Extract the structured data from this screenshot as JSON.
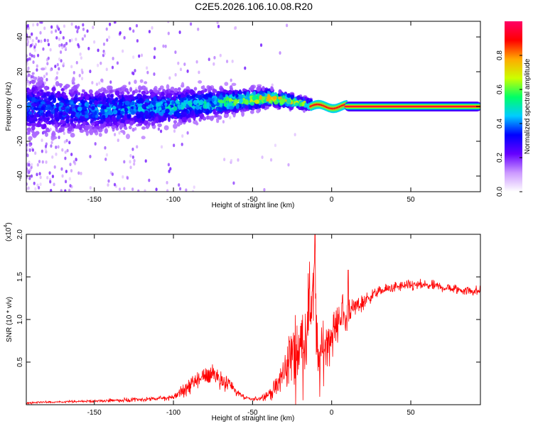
{
  "title": "C2E5.2026.106.10.08.R20",
  "chart_data": [
    {
      "type": "heatmap",
      "xlabel": "Height of straight line (km)",
      "ylabel": "Frequency (Hz)",
      "xlim": [
        -193,
        94
      ],
      "ylim": [
        -49,
        49
      ],
      "xticks": [
        -150,
        -100,
        -50,
        0,
        50
      ],
      "xtick_labels": [
        "-150",
        "-100",
        "-50",
        "0",
        "50"
      ],
      "yticks": [
        -40,
        -20,
        0,
        20,
        40
      ],
      "ytick_labels": [
        "-40",
        "-20",
        "0",
        "20",
        "40"
      ],
      "colorbar": {
        "label": "Normalized spectral amplitude",
        "range": [
          0,
          1
        ],
        "ticks": [
          0,
          0.2,
          0.4,
          0.6,
          0.8
        ],
        "tick_labels": [
          "0.0",
          "0.2",
          "0.4",
          "0.6",
          "0.8"
        ],
        "colors": [
          "#ffffff",
          "#cc99ff",
          "#6600ff",
          "#0000ff",
          "#00ccff",
          "#00ff66",
          "#ccff00",
          "#ffaa00",
          "#ff0000",
          "#ff0066"
        ]
      },
      "ridge": [
        {
          "x": -193,
          "y": 0,
          "spread": 8,
          "level": 0.25
        },
        {
          "x": -150,
          "y": -2,
          "spread": 6,
          "level": 0.3
        },
        {
          "x": -100,
          "y": 0,
          "spread": 5,
          "level": 0.35
        },
        {
          "x": -75,
          "y": 2,
          "spread": 4,
          "level": 0.4
        },
        {
          "x": -50,
          "y": 4,
          "spread": 3,
          "level": 0.55
        },
        {
          "x": -40,
          "y": 5,
          "spread": 2.5,
          "level": 0.7
        },
        {
          "x": -25,
          "y": 3,
          "spread": 2,
          "level": 0.6
        },
        {
          "x": -13,
          "y": 1,
          "spread": 1.5,
          "level": 0.5
        },
        {
          "x": -13,
          "y": 0,
          "spread": 1.2,
          "level": 0.85
        },
        {
          "x": 94,
          "y": 0,
          "spread": 1.2,
          "level": 0.95
        }
      ]
    },
    {
      "type": "line",
      "xlabel": "Height of straight line (km)",
      "ylabel": "SNR (10 * v/v)",
      "multiplier_label": "(x10",
      "multiplier_exp": "4",
      "multiplier_close": ")",
      "xlim": [
        -193,
        94
      ],
      "ylim": [
        0,
        2.0
      ],
      "xticks": [
        -150,
        -100,
        -50,
        0,
        50
      ],
      "xtick_labels": [
        "-150",
        "-100",
        "-50",
        "0",
        "50"
      ],
      "yticks": [
        0.5,
        1.0,
        1.5,
        2.0
      ],
      "ytick_labels": [
        "0.5",
        "1.0",
        "1.5",
        "2.0"
      ],
      "color": "#ff0000",
      "series": [
        {
          "x": [
            -193,
            -180,
            -170,
            -160,
            -150,
            -140,
            -130,
            -120,
            -110,
            -100,
            -95,
            -90,
            -85,
            -80,
            -75,
            -70,
            -65,
            -60,
            -55,
            -50,
            -45,
            -40,
            -35,
            -30,
            -27,
            -24,
            -21,
            -18,
            -15,
            -13,
            -11,
            -9,
            -7,
            -5,
            -3,
            -1,
            1,
            3,
            5,
            7,
            9,
            11,
            13,
            15,
            20,
            25,
            30,
            40,
            50,
            60,
            70,
            80,
            94
          ],
          "y": [
            0.02,
            0.03,
            0.03,
            0.04,
            0.04,
            0.05,
            0.05,
            0.06,
            0.07,
            0.09,
            0.15,
            0.22,
            0.28,
            0.33,
            0.38,
            0.3,
            0.25,
            0.15,
            0.08,
            0.06,
            0.08,
            0.12,
            0.2,
            0.38,
            0.55,
            0.6,
            0.65,
            0.75,
            0.95,
            1.25,
            1.55,
            0.45,
            0.55,
            0.65,
            0.75,
            0.8,
            0.85,
            0.9,
            1.05,
            1.1,
            0.95,
            1.15,
            1.1,
            1.15,
            1.2,
            1.28,
            1.33,
            1.38,
            1.4,
            1.4,
            1.38,
            1.35,
            1.33
          ],
          "noise": [
            0.01,
            0.01,
            0.01,
            0.015,
            0.015,
            0.015,
            0.02,
            0.02,
            0.02,
            0.03,
            0.05,
            0.08,
            0.1,
            0.12,
            0.12,
            0.1,
            0.08,
            0.05,
            0.02,
            0.02,
            0.03,
            0.05,
            0.1,
            0.2,
            0.3,
            0.35,
            0.35,
            0.4,
            0.45,
            0.5,
            0.5,
            0.35,
            0.3,
            0.28,
            0.25,
            0.22,
            0.2,
            0.2,
            0.2,
            0.18,
            0.2,
            0.15,
            0.12,
            0.1,
            0.08,
            0.06,
            0.05,
            0.05,
            0.05,
            0.05,
            0.05,
            0.05,
            0.05
          ]
        }
      ],
      "peaks": [
        {
          "x": -10.5,
          "y": 2.0
        },
        {
          "x": 10.5,
          "y": 1.58
        }
      ]
    }
  ]
}
